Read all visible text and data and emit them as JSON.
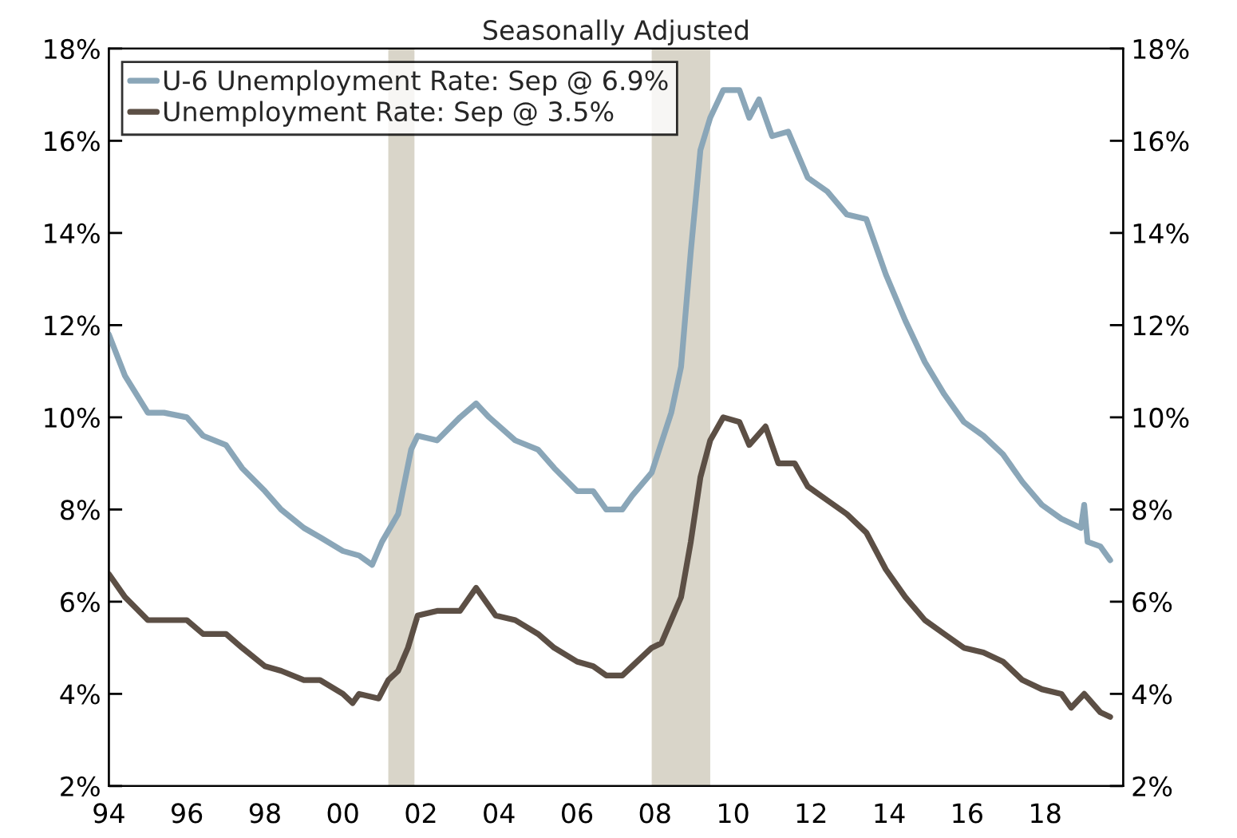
{
  "chart_data": {
    "type": "line",
    "title": "Seasonally Adjusted",
    "xlim": [
      "1994-01",
      "2020-01"
    ],
    "xticks": [
      {
        "value": "1994-01",
        "label": "94"
      },
      {
        "value": "1996-01",
        "label": "96"
      },
      {
        "value": "1998-01",
        "label": "98"
      },
      {
        "value": "2000-01",
        "label": "00"
      },
      {
        "value": "2002-01",
        "label": "02"
      },
      {
        "value": "2004-01",
        "label": "04"
      },
      {
        "value": "2006-01",
        "label": "06"
      },
      {
        "value": "2008-01",
        "label": "08"
      },
      {
        "value": "2010-01",
        "label": "10"
      },
      {
        "value": "2012-01",
        "label": "12"
      },
      {
        "value": "2014-01",
        "label": "14"
      },
      {
        "value": "2016-01",
        "label": "16"
      },
      {
        "value": "2018-01",
        "label": "18"
      },
      {
        "value": "2020-01",
        "label": null
      }
    ],
    "ylim": [
      2,
      18
    ],
    "yticks": [
      {
        "value": 2,
        "label": "2%"
      },
      {
        "value": 4,
        "label": "4%"
      },
      {
        "value": 6,
        "label": "6%"
      },
      {
        "value": 8,
        "label": "8%"
      },
      {
        "value": 10,
        "label": "10%"
      },
      {
        "value": 12,
        "label": "12%"
      },
      {
        "value": 14,
        "label": "14%"
      },
      {
        "value": 16,
        "label": "16%"
      },
      {
        "value": 18,
        "label": "18%"
      }
    ],
    "y2lim": [
      2,
      18
    ],
    "y2ticks": [
      {
        "value": 2,
        "label": "2%"
      },
      {
        "value": 4,
        "label": "4%"
      },
      {
        "value": 6,
        "label": "6%"
      },
      {
        "value": 8,
        "label": "8%"
      },
      {
        "value": 10,
        "label": "10%"
      },
      {
        "value": 12,
        "label": "12%"
      },
      {
        "value": 14,
        "label": "14%"
      },
      {
        "value": 16,
        "label": "16%"
      },
      {
        "value": 18,
        "label": "18%"
      }
    ],
    "bands": [
      {
        "axis": "x",
        "from": "2001-03",
        "to": "2001-11",
        "color": "#d9d5c9"
      },
      {
        "axis": "x",
        "from": "2007-12",
        "to": "2009-06",
        "color": "#d9d5c9"
      }
    ],
    "grid": false,
    "legend": "top left",
    "marker": "none",
    "line_style": "solid",
    "series": [
      {
        "name": "U-6 Unemployment Rate: Sep @ 6.9%",
        "color": "#8aa6b8",
        "x": [
          "1994-01",
          "1994-06",
          "1995-01",
          "1995-06",
          "1996-01",
          "1996-06",
          "1997-01",
          "1997-06",
          "1998-01",
          "1998-06",
          "1999-01",
          "1999-06",
          "2000-01",
          "2000-06",
          "2000-10",
          "2001-01",
          "2001-06",
          "2001-10",
          "2001-12",
          "2002-06",
          "2003-01",
          "2003-06",
          "2003-10",
          "2004-06",
          "2005-01",
          "2005-06",
          "2006-01",
          "2006-06",
          "2006-10",
          "2007-03",
          "2007-06",
          "2007-12",
          "2008-06",
          "2008-09",
          "2008-12",
          "2009-03",
          "2009-06",
          "2009-10",
          "2010-03",
          "2010-06",
          "2010-09",
          "2011-01",
          "2011-06",
          "2011-12",
          "2012-06",
          "2012-12",
          "2013-06",
          "2013-12",
          "2014-06",
          "2014-12",
          "2015-06",
          "2015-12",
          "2016-06",
          "2016-12",
          "2017-06",
          "2017-12",
          "2018-06",
          "2018-12",
          "2019-01",
          "2019-02",
          "2019-06",
          "2019-09"
        ],
        "values": [
          11.8,
          10.9,
          10.1,
          10.1,
          10.0,
          9.6,
          9.4,
          8.9,
          8.4,
          8.0,
          7.6,
          7.4,
          7.1,
          7.0,
          6.8,
          7.3,
          7.9,
          9.3,
          9.6,
          9.5,
          10.0,
          10.3,
          10.0,
          9.5,
          9.3,
          8.9,
          8.4,
          8.4,
          8.0,
          8.0,
          8.3,
          8.8,
          10.1,
          11.1,
          13.6,
          15.8,
          16.5,
          17.1,
          17.1,
          16.5,
          16.9,
          16.1,
          16.2,
          15.2,
          14.9,
          14.4,
          14.3,
          13.1,
          12.1,
          11.2,
          10.5,
          9.9,
          9.6,
          9.2,
          8.6,
          8.1,
          7.8,
          7.6,
          8.1,
          7.3,
          7.2,
          6.9
        ]
      },
      {
        "name": "Unemployment Rate: Sep @ 3.5%",
        "color": "#5c4f45",
        "x": [
          "1994-01",
          "1994-06",
          "1995-01",
          "1995-06",
          "1996-01",
          "1996-06",
          "1997-01",
          "1997-06",
          "1998-01",
          "1998-06",
          "1999-01",
          "1999-06",
          "2000-01",
          "2000-04",
          "2000-06",
          "2000-12",
          "2001-03",
          "2001-06",
          "2001-09",
          "2001-12",
          "2002-06",
          "2003-01",
          "2003-06",
          "2003-12",
          "2004-06",
          "2005-01",
          "2005-06",
          "2006-01",
          "2006-06",
          "2006-10",
          "2007-03",
          "2007-06",
          "2007-12",
          "2008-03",
          "2008-06",
          "2008-09",
          "2008-12",
          "2009-03",
          "2009-06",
          "2009-10",
          "2010-03",
          "2010-06",
          "2010-11",
          "2011-03",
          "2011-08",
          "2011-12",
          "2012-06",
          "2012-12",
          "2013-06",
          "2013-12",
          "2014-06",
          "2014-12",
          "2015-06",
          "2015-12",
          "2016-06",
          "2016-12",
          "2017-06",
          "2017-12",
          "2018-06",
          "2018-09",
          "2019-01",
          "2019-06",
          "2019-09"
        ],
        "values": [
          6.6,
          6.1,
          5.6,
          5.6,
          5.6,
          5.3,
          5.3,
          5.0,
          4.6,
          4.5,
          4.3,
          4.3,
          4.0,
          3.8,
          4.0,
          3.9,
          4.3,
          4.5,
          5.0,
          5.7,
          5.8,
          5.8,
          6.3,
          5.7,
          5.6,
          5.3,
          5.0,
          4.7,
          4.6,
          4.4,
          4.4,
          4.6,
          5.0,
          5.1,
          5.6,
          6.1,
          7.3,
          8.7,
          9.5,
          10.0,
          9.9,
          9.4,
          9.8,
          9.0,
          9.0,
          8.5,
          8.2,
          7.9,
          7.5,
          6.7,
          6.1,
          5.6,
          5.3,
          5.0,
          4.9,
          4.7,
          4.3,
          4.1,
          4.0,
          3.7,
          4.0,
          3.6,
          3.5
        ]
      }
    ]
  }
}
